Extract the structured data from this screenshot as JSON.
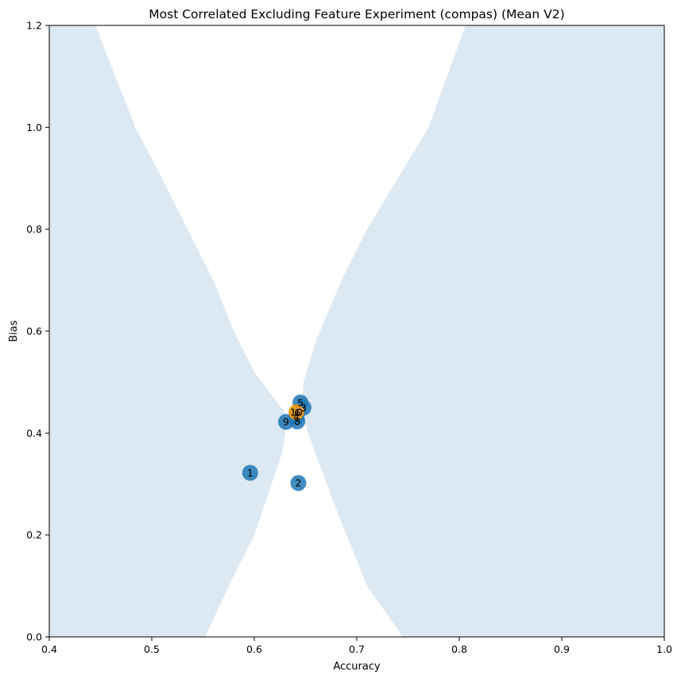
{
  "chart_data": {
    "type": "scatter",
    "title": "Most Correlated Excluding Feature Experiment (compas) (Mean V2)",
    "xlabel": "Accuracy",
    "ylabel": "Bias",
    "xlim": [
      0.4,
      1.0
    ],
    "ylim": [
      0.0,
      1.2
    ],
    "xticks": [
      "0.4",
      "0.5",
      "0.6",
      "0.7",
      "0.8",
      "0.9",
      "1.0"
    ],
    "yticks": [
      "0.0",
      "0.2",
      "0.4",
      "0.6",
      "0.8",
      "1.0",
      "1.2"
    ],
    "grid": false,
    "colors": {
      "points": "#1f77b4",
      "highlight": "#ff9f0a",
      "region": "#dce8f2"
    },
    "shaded_region": {
      "description_free": true,
      "left_boundary": [
        [
          0.445,
          1.2
        ],
        [
          0.484,
          1.0
        ],
        [
          0.51,
          0.9
        ],
        [
          0.535,
          0.8
        ],
        [
          0.56,
          0.7
        ],
        [
          0.58,
          0.6
        ],
        [
          0.6,
          0.52
        ],
        [
          0.63,
          0.44
        ],
        [
          0.632,
          0.42
        ],
        [
          0.627,
          0.36
        ],
        [
          0.6,
          0.2
        ],
        [
          0.575,
          0.1
        ],
        [
          0.552,
          0.0
        ]
      ],
      "right_boundary": [
        [
          0.806,
          1.2
        ],
        [
          0.77,
          1.0
        ],
        [
          0.74,
          0.9
        ],
        [
          0.71,
          0.8
        ],
        [
          0.685,
          0.7
        ],
        [
          0.66,
          0.58
        ],
        [
          0.648,
          0.5
        ],
        [
          0.646,
          0.44
        ],
        [
          0.656,
          0.38
        ],
        [
          0.68,
          0.25
        ],
        [
          0.71,
          0.1
        ],
        [
          0.745,
          0.0
        ]
      ]
    },
    "points": [
      {
        "label": "1",
        "x": 0.596,
        "y": 0.322,
        "color": "#1f77b4"
      },
      {
        "label": "2",
        "x": 0.643,
        "y": 0.302,
        "color": "#1f77b4"
      },
      {
        "label": "9",
        "x": 0.631,
        "y": 0.422,
        "color": "#1f77b4"
      },
      {
        "label": "8",
        "x": 0.642,
        "y": 0.423,
        "color": "#1f77b4"
      },
      {
        "label": "4",
        "x": 0.641,
        "y": 0.432,
        "color": "#1f77b4"
      },
      {
        "label": "3",
        "x": 0.648,
        "y": 0.45,
        "color": "#1f77b4"
      },
      {
        "label": "5",
        "x": 0.645,
        "y": 0.46,
        "color": "#1f77b4"
      },
      {
        "label": "6",
        "x": 0.642,
        "y": 0.44,
        "color": "#1f77b4"
      },
      {
        "label": "10",
        "x": 0.641,
        "y": 0.441,
        "color": "#ff9f0a"
      }
    ]
  }
}
